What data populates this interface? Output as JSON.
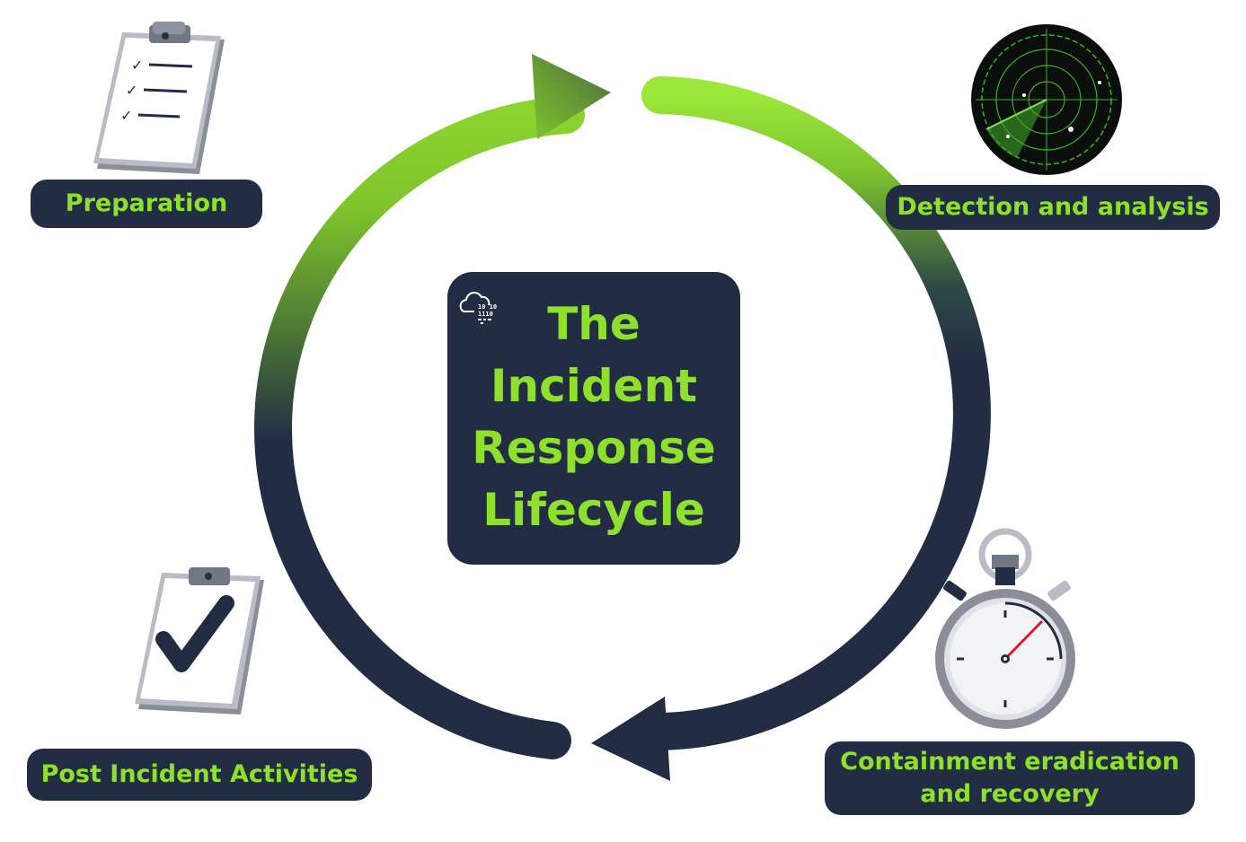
{
  "diagram": {
    "center_title": "The\nIncident\nResponse\n Lifecycle",
    "logo_text_1": "10 10",
    "logo_text_2": "1110",
    "stages": [
      {
        "label": "Preparation",
        "icon": "clipboard-checklist-icon"
      },
      {
        "label": "Detection and analysis",
        "icon": "radar-icon"
      },
      {
        "label": "Containment eradication\nand recovery",
        "icon": "stopwatch-icon"
      },
      {
        "label": "Post Incident Activities",
        "icon": "clipboard-check-icon"
      }
    ]
  },
  "colors": {
    "navy": "#222d44",
    "green": "#8ee02a",
    "white": "#ffffff"
  }
}
